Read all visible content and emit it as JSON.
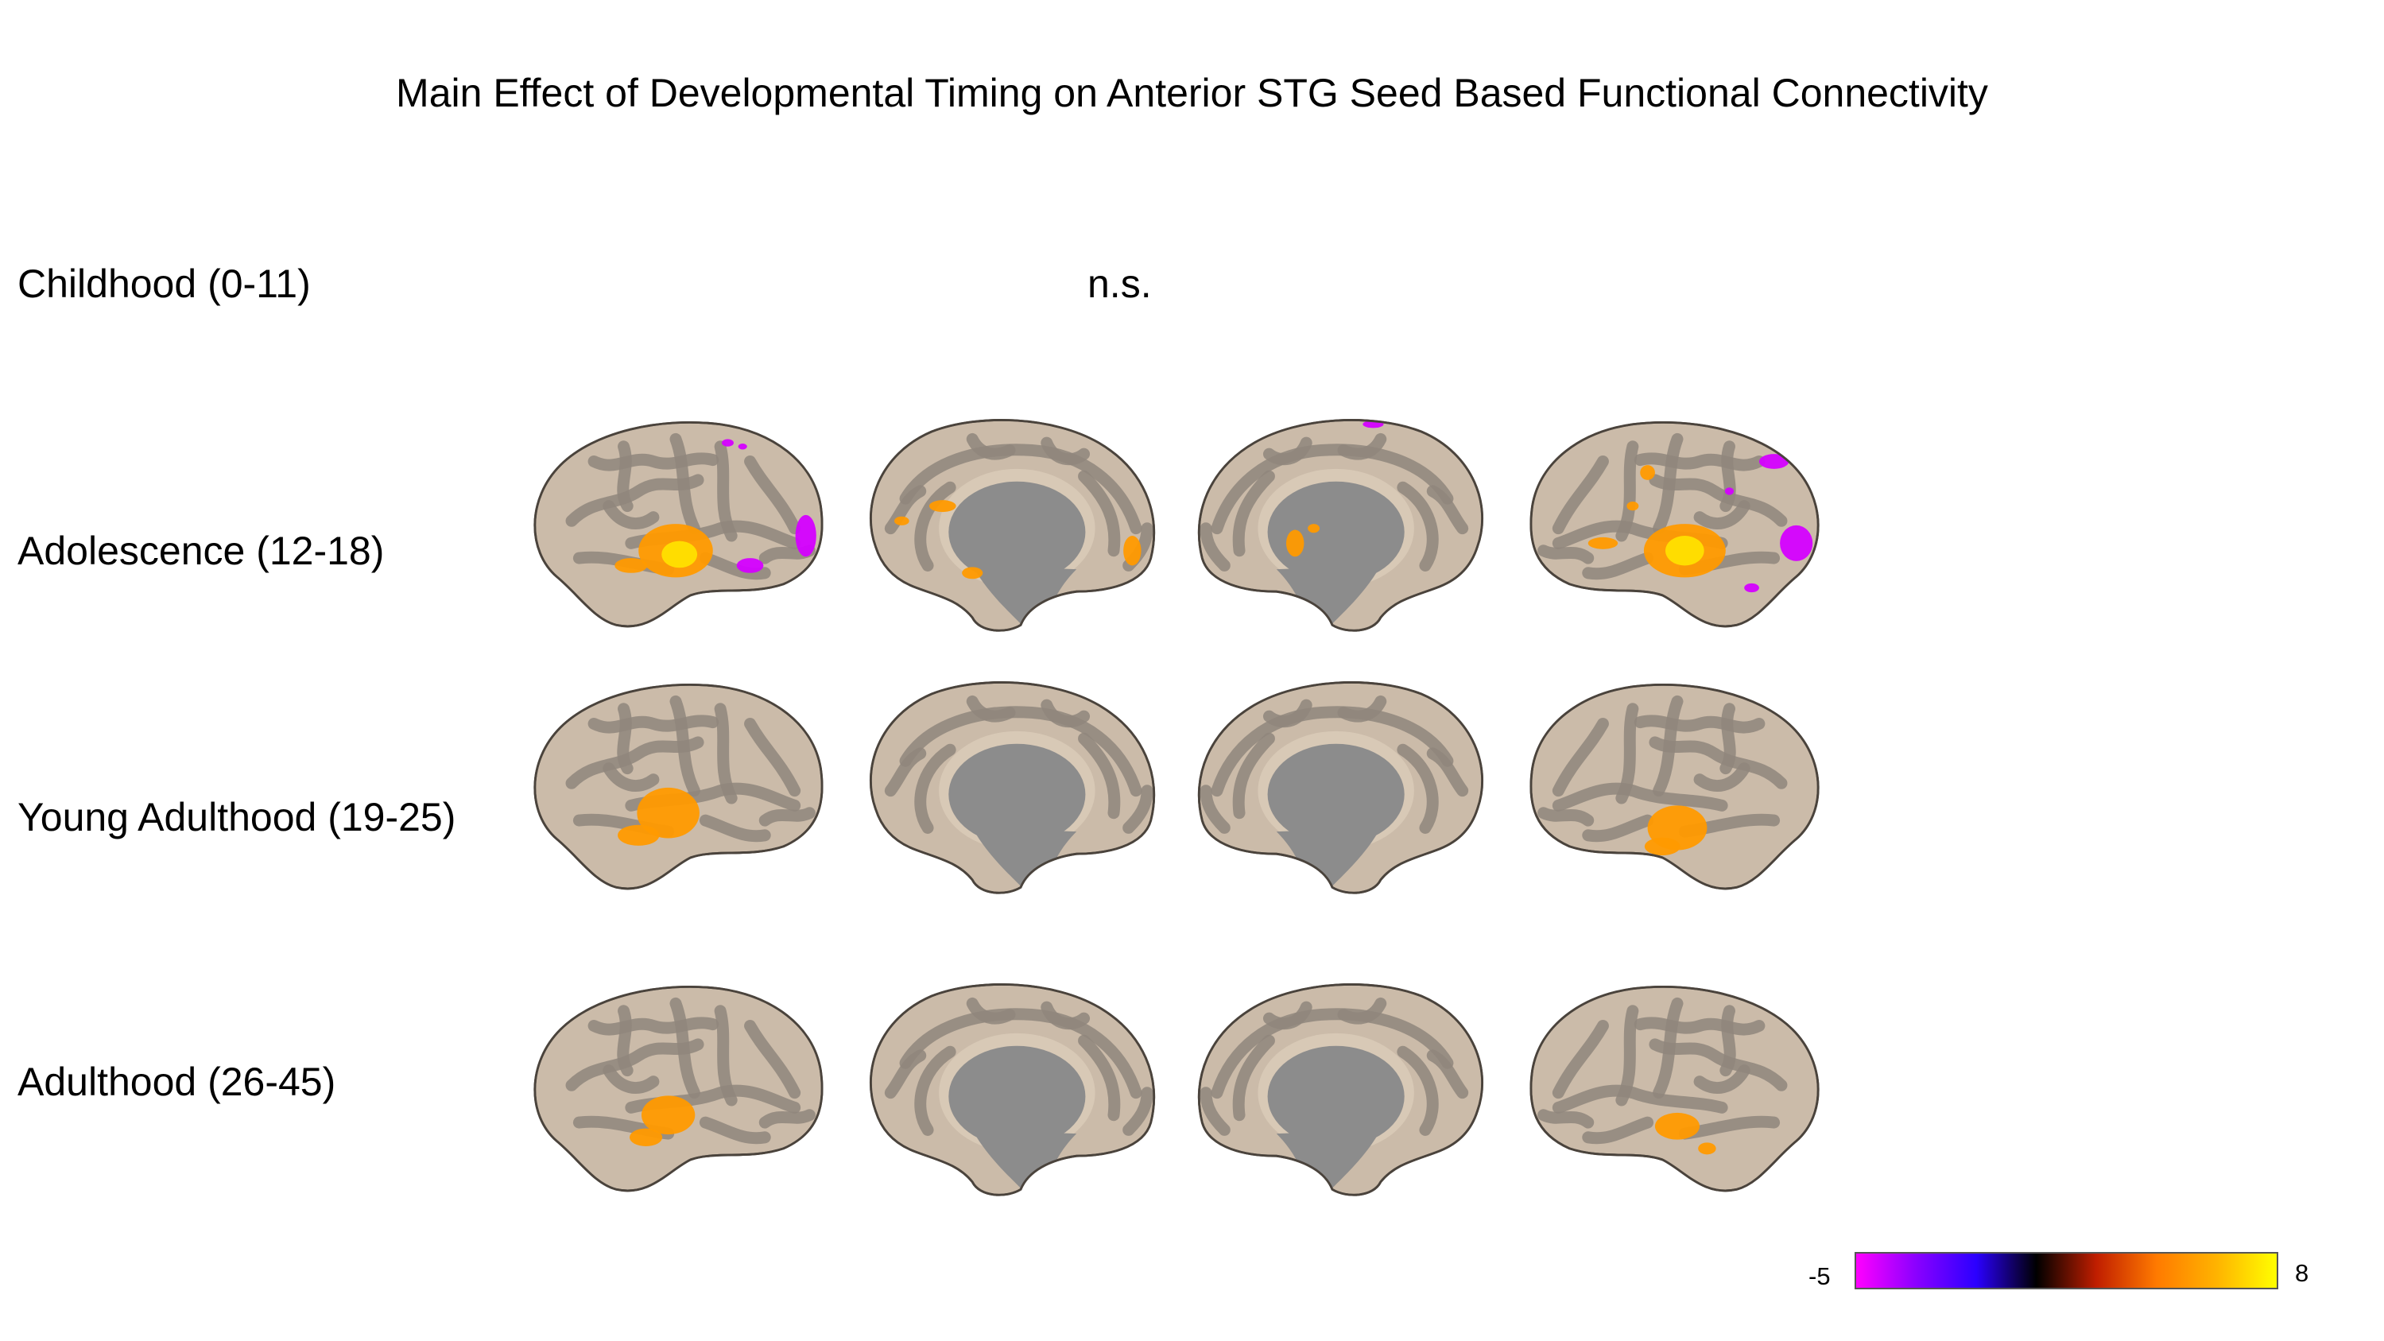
{
  "title": "Main Effect of  Developmental Timing on Anterior STG Seed Based Functional Connectivity",
  "rows": [
    {
      "label": "Childhood (0-11)",
      "result": "n.s."
    },
    {
      "label": "Adolescence (12-18)"
    },
    {
      "label": "Young Adulthood (19-25)"
    },
    {
      "label": "Adulthood (26-45)"
    }
  ],
  "views": [
    "left-lateral",
    "left-medial",
    "right-medial",
    "right-lateral"
  ],
  "colorbar": {
    "min_label": "-5",
    "max_label": "8",
    "gradient_colors": [
      "#ff00ff",
      "#8a00ff",
      "#2b00ff",
      "#000000",
      "#c01e00",
      "#ff7a00",
      "#ffb300",
      "#ffff00"
    ]
  },
  "colors": {
    "surface": "#cbbba9",
    "sulci": "#8f867d",
    "medial_wall": "#8c8c8c",
    "positive": "#ff9a00",
    "peak": "#ffe400",
    "negative": "#d400ff"
  }
}
